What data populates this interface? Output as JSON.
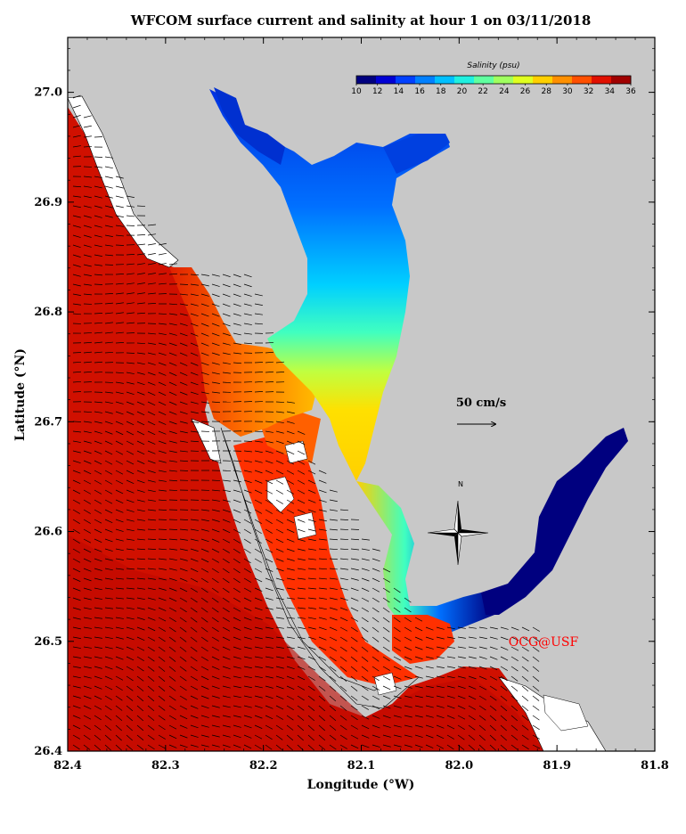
{
  "title": "WFCOM surface current and salinity at hour 1 on 03/11/2018",
  "map": {
    "lon_min": 81.8,
    "lon_max": 82.4,
    "lat_min": 26.4,
    "lat_max": 27.05,
    "x_axis_title": "Longitude (°W)",
    "y_axis_title": "Latitude (°N)",
    "lon_ticks": [
      "82.4",
      "82.3",
      "82.2",
      "82.1",
      "82.0",
      "81.9",
      "81.8"
    ],
    "lat_ticks": [
      "26.4",
      "26.5",
      "26.6",
      "26.7",
      "26.8",
      "26.9",
      "27.0"
    ],
    "land_color": "#c8c8c8"
  },
  "colorbar": {
    "title": "Salinity (psu)",
    "min": 10,
    "max": 36,
    "labels": [
      "10",
      "12",
      "14",
      "16",
      "18",
      "20",
      "22",
      "24",
      "26",
      "28",
      "30",
      "32",
      "34",
      "36"
    ],
    "colors": [
      "#00007f",
      "#0000d4",
      "#0040ff",
      "#0080ff",
      "#00c0ff",
      "#20f0e0",
      "#60ffa0",
      "#a0ff60",
      "#e0ff20",
      "#ffd000",
      "#ff9000",
      "#ff5000",
      "#e01000",
      "#a00000"
    ]
  },
  "scale_vector": {
    "label": "50 cm/s"
  },
  "north_arrow": {
    "label": "N"
  },
  "credit": "OCG@USF"
}
